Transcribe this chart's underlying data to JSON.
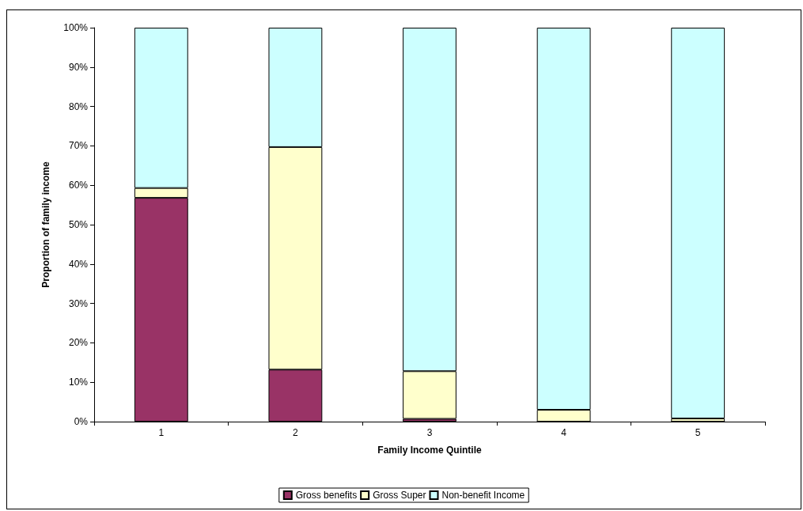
{
  "chart_data": {
    "type": "bar",
    "stacked": true,
    "categories": [
      "1",
      "2",
      "3",
      "4",
      "5"
    ],
    "xlabel": "Family Income Quintile",
    "ylabel": "Proportion of family income",
    "series": [
      {
        "name": "Gross benefits",
        "color": "#993366",
        "values": [
          56.8,
          13.2,
          0.7,
          0,
          0
        ]
      },
      {
        "name": "Gross Super",
        "color": "#ffffcc",
        "values": [
          2.5,
          56.5,
          12.1,
          3.0,
          0.8
        ]
      },
      {
        "name": "Non-benefit Income",
        "color": "#ccffff",
        "values": [
          40.7,
          30.3,
          87.2,
          97.0,
          99.2
        ]
      }
    ],
    "ylim": [
      0,
      100
    ],
    "yticks": [
      {
        "value": 0,
        "label": "0%"
      },
      {
        "value": 10,
        "label": "10%"
      },
      {
        "value": 20,
        "label": "20%"
      },
      {
        "value": 30,
        "label": "30%"
      },
      {
        "value": 40,
        "label": "40%"
      },
      {
        "value": 50,
        "label": "50%"
      },
      {
        "value": 60,
        "label": "60%"
      },
      {
        "value": 70,
        "label": "70%"
      },
      {
        "value": 80,
        "label": "80%"
      },
      {
        "value": 90,
        "label": "90%"
      },
      {
        "value": 100,
        "label": "100%"
      }
    ],
    "grid": false,
    "legend": "bottom"
  }
}
